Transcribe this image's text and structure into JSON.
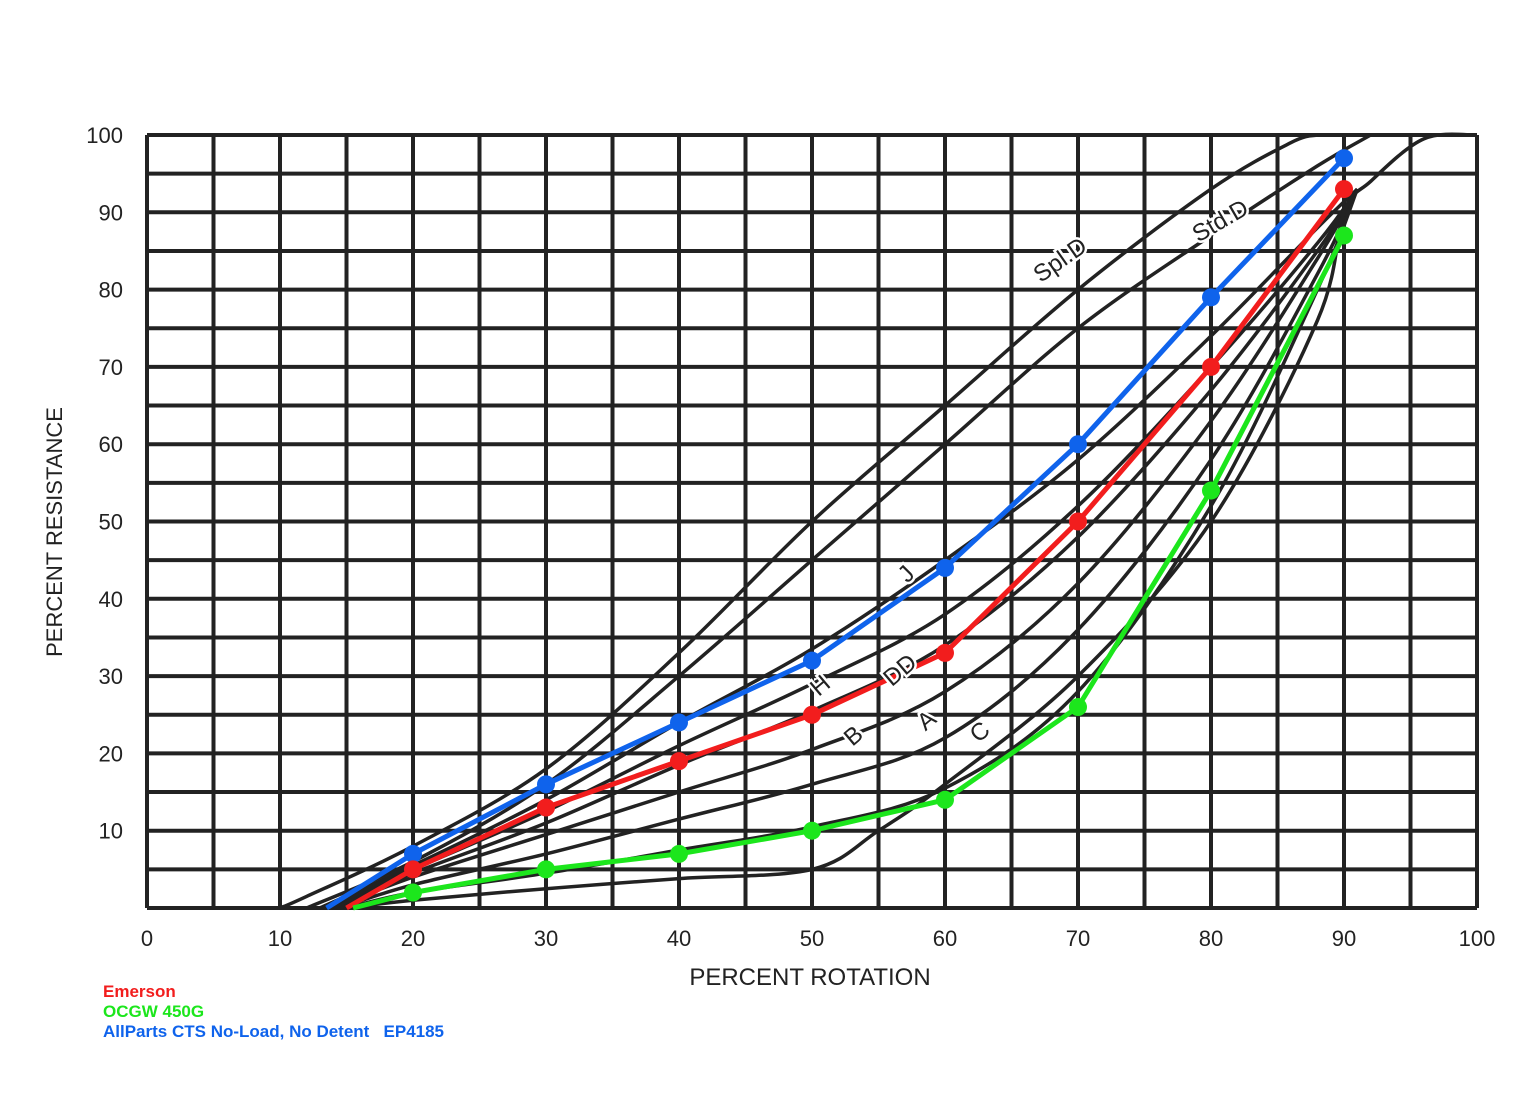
{
  "chart_data": {
    "type": "line",
    "xlabel": "PERCENT ROTATION",
    "ylabel": "PERCENT RESISTANCE",
    "xlim": [
      0,
      100
    ],
    "ylim": [
      0,
      100
    ],
    "x_ticks": [
      "0",
      "10",
      "20",
      "30",
      "40",
      "50",
      "60",
      "70",
      "80",
      "90",
      "100"
    ],
    "y_ticks": [
      "10",
      "20",
      "30",
      "40",
      "50",
      "60",
      "70",
      "80",
      "90",
      "100"
    ],
    "grid": true,
    "reference_curves": [
      {
        "name": "Spl.D",
        "points": [
          [
            10,
            0
          ],
          [
            12,
            1.5
          ],
          [
            20,
            8
          ],
          [
            30,
            18
          ],
          [
            40,
            33
          ],
          [
            50,
            50
          ],
          [
            60,
            65
          ],
          [
            70,
            80
          ],
          [
            80,
            93
          ],
          [
            86,
            99
          ],
          [
            88,
            100
          ]
        ]
      },
      {
        "name": "Std.D",
        "points": [
          [
            12,
            0
          ],
          [
            20,
            6
          ],
          [
            30,
            16
          ],
          [
            40,
            30
          ],
          [
            50,
            45
          ],
          [
            60,
            60
          ],
          [
            70,
            75
          ],
          [
            80,
            87
          ],
          [
            88,
            96
          ],
          [
            92,
            100
          ]
        ]
      },
      {
        "name": "J",
        "points": [
          [
            13,
            0
          ],
          [
            20,
            5.5
          ],
          [
            30,
            14
          ],
          [
            40,
            24
          ],
          [
            50,
            33.5
          ],
          [
            60,
            45
          ],
          [
            70,
            58
          ],
          [
            80,
            74
          ],
          [
            88,
            88
          ],
          [
            91,
            93
          ]
        ]
      },
      {
        "name": "H",
        "points": [
          [
            13.5,
            0
          ],
          [
            20,
            5
          ],
          [
            30,
            12.5
          ],
          [
            40,
            21
          ],
          [
            50,
            29
          ],
          [
            60,
            38
          ],
          [
            70,
            52
          ],
          [
            80,
            70
          ],
          [
            88,
            86
          ],
          [
            91,
            93
          ]
        ]
      },
      {
        "name": "DD",
        "points": [
          [
            14,
            0
          ],
          [
            20,
            4.5
          ],
          [
            30,
            11
          ],
          [
            40,
            18.5
          ],
          [
            50,
            25.5
          ],
          [
            60,
            34
          ],
          [
            70,
            48
          ],
          [
            80,
            67
          ],
          [
            88,
            85
          ],
          [
            91,
            93
          ]
        ]
      },
      {
        "name": "B",
        "points": [
          [
            14,
            0
          ],
          [
            20,
            4
          ],
          [
            30,
            9.5
          ],
          [
            40,
            15
          ],
          [
            50,
            20.5
          ],
          [
            60,
            28
          ],
          [
            70,
            42
          ],
          [
            80,
            63
          ],
          [
            88,
            84
          ],
          [
            91,
            93
          ]
        ]
      },
      {
        "name": "A",
        "points": [
          [
            14.5,
            0
          ],
          [
            20,
            3
          ],
          [
            30,
            7
          ],
          [
            40,
            11.5
          ],
          [
            50,
            16
          ],
          [
            60,
            22
          ],
          [
            70,
            36
          ],
          [
            80,
            58
          ],
          [
            88,
            82
          ],
          [
            91,
            93
          ]
        ]
      },
      {
        "name": "C",
        "points": [
          [
            15,
            0
          ],
          [
            20,
            2
          ],
          [
            30,
            4.5
          ],
          [
            40,
            7.5
          ],
          [
            50,
            10.5
          ],
          [
            60,
            15.5
          ],
          [
            70,
            28
          ],
          [
            80,
            52
          ],
          [
            88,
            80
          ],
          [
            91,
            93
          ]
        ]
      },
      {
        "name": "",
        "points": [
          [
            15,
            0
          ],
          [
            20,
            1
          ],
          [
            30,
            2.5
          ],
          [
            40,
            3.8
          ],
          [
            50,
            5
          ],
          [
            55,
            10
          ],
          [
            60,
            16
          ],
          [
            70,
            30
          ],
          [
            80,
            50
          ],
          [
            88,
            76
          ],
          [
            90,
            90
          ],
          [
            92,
            94
          ],
          [
            96,
            99.5
          ],
          [
            100,
            100
          ]
        ]
      }
    ],
    "series": [
      {
        "name": "AllParts CTS No-Load, No Detent   EP4185",
        "color": "#0f63ec",
        "x": [
          20,
          30,
          40,
          50,
          60,
          70,
          80,
          90
        ],
        "y": [
          7,
          16,
          24,
          32,
          44,
          60,
          79,
          97
        ]
      },
      {
        "name": "Emerson",
        "color": "#f21d1d",
        "x": [
          20,
          30,
          40,
          50,
          60,
          70,
          80,
          90
        ],
        "y": [
          5,
          13,
          19,
          25,
          33,
          50,
          70,
          93
        ]
      },
      {
        "name": "OCGW 450G",
        "color": "#1ce61c",
        "x": [
          20,
          30,
          40,
          50,
          60,
          70,
          80,
          90
        ],
        "y": [
          2,
          5,
          7,
          10,
          14,
          26,
          54,
          87
        ]
      }
    ],
    "series_starts": [
      [
        13.5,
        0
      ],
      [
        15,
        0
      ],
      [
        15.5,
        0
      ]
    ],
    "curve_labels": [
      {
        "text": "Spl.D",
        "x": 69,
        "y": 83,
        "angle": -35
      },
      {
        "text": "Std.D",
        "x": 81,
        "y": 88,
        "angle": -30
      },
      {
        "text": "J",
        "x": 57.5,
        "y": 42.5,
        "angle": -45
      },
      {
        "text": "H",
        "x": 51,
        "y": 28,
        "angle": -40
      },
      {
        "text": "DD",
        "x": 57,
        "y": 30,
        "angle": -40
      },
      {
        "text": "B",
        "x": 53.5,
        "y": 21.5,
        "angle": -40
      },
      {
        "text": "A",
        "x": 59,
        "y": 23.5,
        "angle": -40
      },
      {
        "text": "C",
        "x": 63,
        "y": 22,
        "angle": -40
      }
    ]
  },
  "legend": [
    {
      "label": "Emerson",
      "color": "#f21d1d"
    },
    {
      "label": "OCGW 450G",
      "color": "#1ce61c"
    },
    {
      "label": "AllParts CTS No-Load, No Detent   EP4185",
      "color": "#0f63ec"
    }
  ]
}
